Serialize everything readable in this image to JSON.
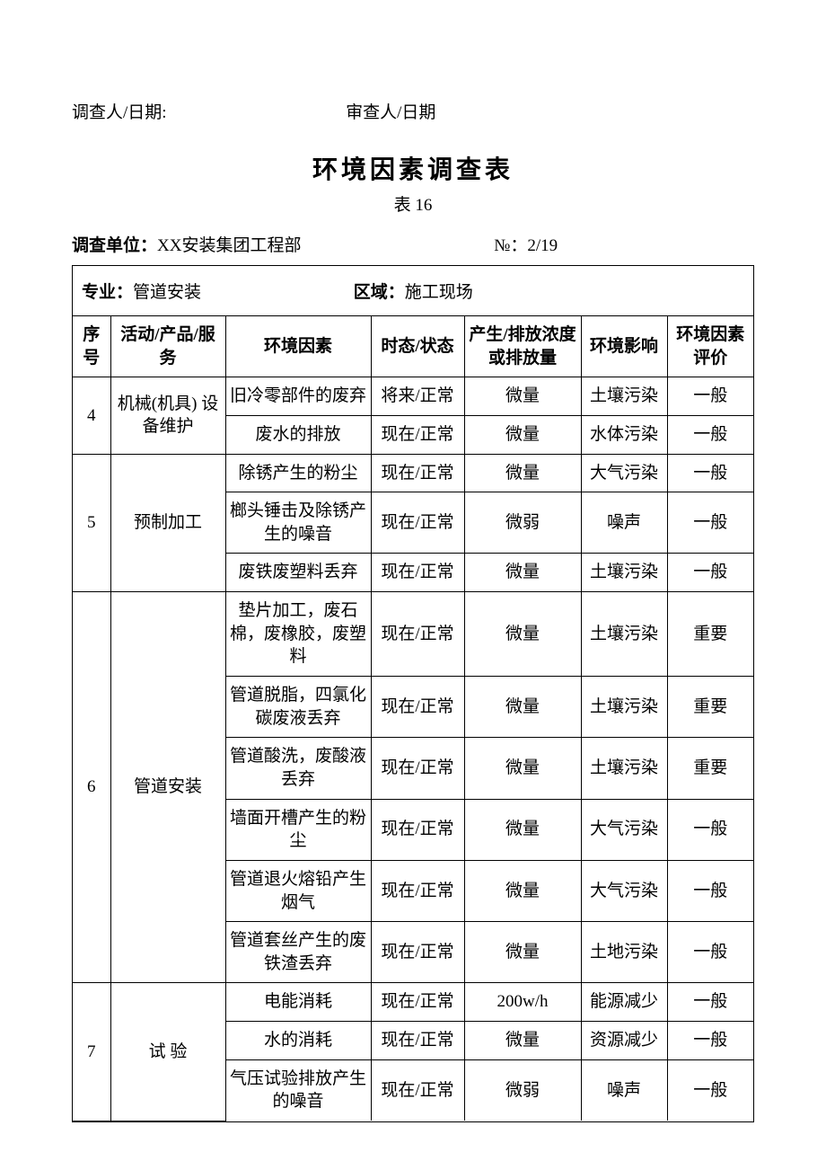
{
  "top": {
    "investigator_label": "调查人/日期:",
    "reviewer_label": "审查人/日期"
  },
  "title": "环境因素调查表",
  "subtitle": "表 16",
  "meta": {
    "unit_label": "调查单位：",
    "unit_value": "XX安装集团工程部",
    "no_label": "№：",
    "no_value": "2/19"
  },
  "section_header": {
    "spec_label": "专业：",
    "spec_value": "管道安装",
    "area_label": "区域：",
    "area_value": "施工现场"
  },
  "columns": [
    "序号",
    "活动/产品/服务",
    "环境因素",
    "时态/状态",
    "产生/排放浓度或排放量",
    "环境影响",
    "环境因素评价"
  ],
  "groups": [
    {
      "seq": "4",
      "activity": "机械(机具) 设备维护",
      "rows": [
        {
          "factor": "旧冷零部件的废弃",
          "state": "将来/正常",
          "amount": "微量",
          "impact": "土壤污染",
          "eval": "一般"
        },
        {
          "factor": "废水的排放",
          "state": "现在/正常",
          "amount": "微量",
          "impact": "水体污染",
          "eval": "一般"
        }
      ]
    },
    {
      "seq": "5",
      "activity": "预制加工",
      "rows": [
        {
          "factor": "除锈产生的粉尘",
          "state": "现在/正常",
          "amount": "微量",
          "impact": "大气污染",
          "eval": "一般"
        },
        {
          "factor": "榔头锤击及除锈产生的噪音",
          "state": "现在/正常",
          "amount": "微弱",
          "impact": "噪声",
          "eval": "一般"
        },
        {
          "factor": "废铁废塑料丢弃",
          "state": "现在/正常",
          "amount": "微量",
          "impact": "土壤污染",
          "eval": "一般"
        }
      ]
    },
    {
      "seq": "6",
      "activity": "管道安装",
      "rows": [
        {
          "factor": "垫片加工，废石棉，废橡胶，废塑料",
          "state": "现在/正常",
          "amount": "微量",
          "impact": "土壤污染",
          "eval": "重要"
        },
        {
          "factor": "管道脱脂，四氯化碳废液丢弃",
          "state": "现在/正常",
          "amount": "微量",
          "impact": "土壤污染",
          "eval": "重要"
        },
        {
          "factor": "管道酸洗，废酸液丢弃",
          "state": "现在/正常",
          "amount": "微量",
          "impact": "土壤污染",
          "eval": "重要"
        },
        {
          "factor": "墙面开槽产生的粉尘",
          "state": "现在/正常",
          "amount": "微量",
          "impact": "大气污染",
          "eval": "一般"
        },
        {
          "factor": "管道退火熔铅产生烟气",
          "state": "现在/正常",
          "amount": "微量",
          "impact": "大气污染",
          "eval": "一般"
        },
        {
          "factor": "管道套丝产生的废铁渣丢弃",
          "state": "现在/正常",
          "amount": "微量",
          "impact": "土地污染",
          "eval": "一般"
        }
      ]
    },
    {
      "seq": "7",
      "activity": "试 验",
      "rows": [
        {
          "factor": "电能消耗",
          "state": "现在/正常",
          "amount": "200w/h",
          "impact": "能源减少",
          "eval": "一般"
        },
        {
          "factor": "水的消耗",
          "state": "现在/正常",
          "amount": "微量",
          "impact": "资源减少",
          "eval": "一般"
        },
        {
          "factor": "气压试验排放产生的噪音",
          "state": "现在/正常",
          "amount": "微弱",
          "impact": "噪声",
          "eval": "一般"
        }
      ]
    }
  ]
}
